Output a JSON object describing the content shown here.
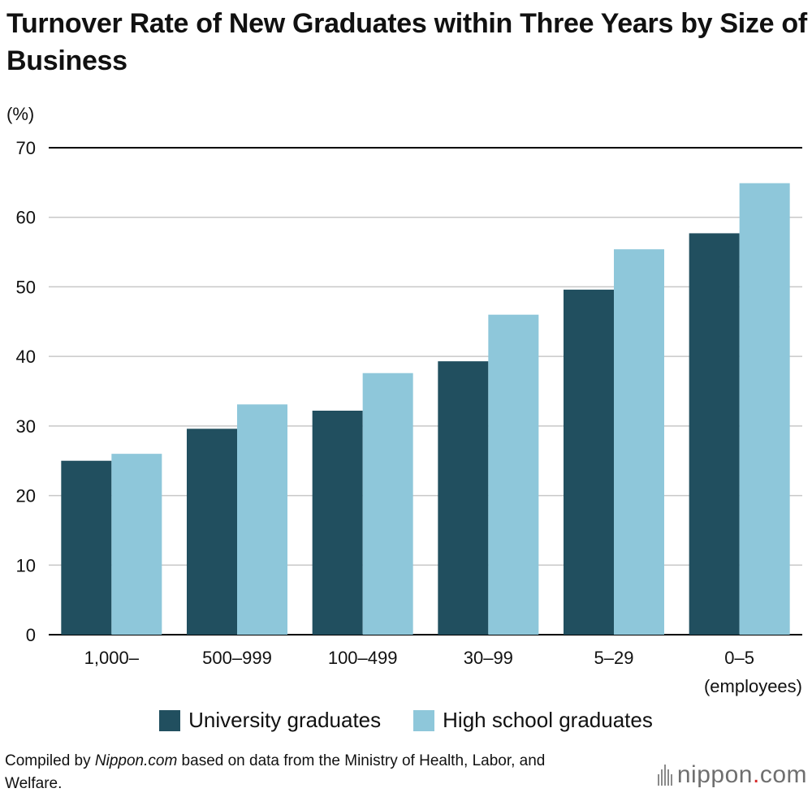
{
  "title": "Turnover Rate of New Graduates within Three Years by Size of Business",
  "source": {
    "prefix": "Compiled by ",
    "italic": "Nippon.com",
    "suffix": " based on data from the Ministry of Health, Labor, and Welfare."
  },
  "logo": {
    "name": "nippon",
    "dot": ".",
    "tld": "com"
  },
  "colors": {
    "university": "#214f5f",
    "highschool": "#8ec7da",
    "grid": "#c8c8c8",
    "axis": "#000000"
  },
  "chart_data": {
    "type": "bar",
    "title": "Turnover Rate of New Graduates within Three Years by Size of Business",
    "ylabel": "(%)",
    "xlabel": "(employees)",
    "ylim": [
      0,
      70
    ],
    "yticks": [
      0,
      10,
      20,
      30,
      40,
      50,
      60,
      70
    ],
    "grid": true,
    "legend_position": "bottom-center",
    "categories": [
      "1,000–",
      "500–999",
      "100–499",
      "30–99",
      "5–29",
      "0–5"
    ],
    "series": [
      {
        "name": "University graduates",
        "values": [
          25.0,
          29.6,
          32.2,
          39.3,
          49.6,
          57.7
        ]
      },
      {
        "name": "High school graduates",
        "values": [
          26.0,
          33.1,
          37.6,
          46.0,
          55.4,
          64.9
        ]
      }
    ]
  }
}
